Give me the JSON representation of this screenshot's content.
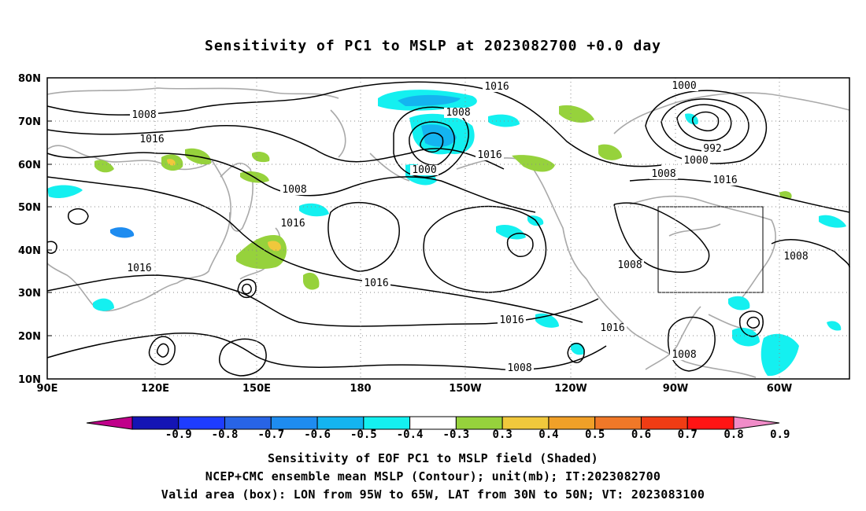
{
  "title": "Sensitivity of PC1 to MSLP at 2023082700 +0.0 day",
  "lat_labels": [
    "80N",
    "70N",
    "60N",
    "50N",
    "40N",
    "30N",
    "20N",
    "10N"
  ],
  "lon_labels": [
    "90E",
    "120E",
    "150E",
    "180",
    "150W",
    "120W",
    "90W",
    "60W"
  ],
  "isobar_labels": [
    "1016",
    "1008",
    "1008",
    "1016",
    "1000",
    "1000",
    "992",
    "1000",
    "1008",
    "1016",
    "1016",
    "1008",
    "1016",
    "1016",
    "1016",
    "1016",
    "1008",
    "1008",
    "1016",
    "1008",
    "1008"
  ],
  "colorbar": {
    "ticks": [
      "-0.9",
      "-0.8",
      "-0.7",
      "-0.6",
      "-0.5",
      "-0.4",
      "-0.3",
      "0.3",
      "0.4",
      "0.5",
      "0.6",
      "0.7",
      "0.8",
      "0.9"
    ],
    "colors": [
      "#c0008a",
      "#1414b4",
      "#1e3cff",
      "#2864e6",
      "#1e8cf0",
      "#14b4f0",
      "#14f0f0",
      "#ffffff",
      "#96d23c",
      "#f0c83c",
      "#f0a028",
      "#f07828",
      "#f03c14",
      "#ff1414",
      "#f08cc8"
    ]
  },
  "captions": [
    "Sensitivity of EOF PC1 to MSLP field (Shaded)",
    "NCEP+CMC ensemble mean MSLP (Contour); unit(mb); IT:2023082700",
    "Valid area (box): LON from 95W to 65W, LAT from 30N to 50N; VT: 2023083100"
  ]
}
